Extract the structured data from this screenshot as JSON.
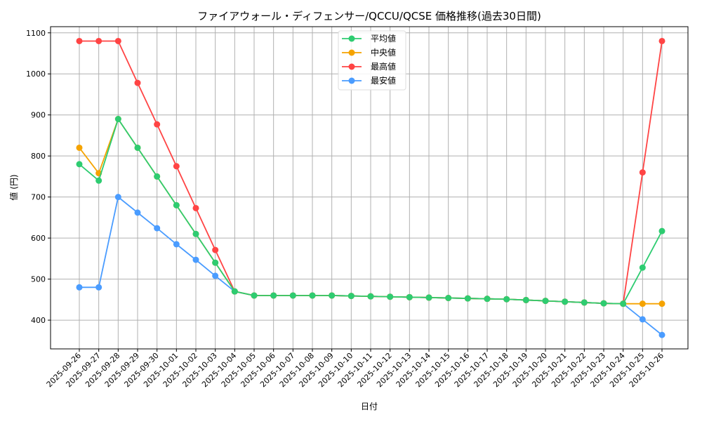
{
  "chart_data": {
    "type": "line",
    "title": "ファイアウォール・ディフェンサー/QCCU/QCSE 価格推移(過去30日間)",
    "xlabel": "日付",
    "ylabel": "値 (円)",
    "ylim": [
      330,
      1115
    ],
    "yticks": [
      400,
      500,
      600,
      700,
      800,
      900,
      1000,
      1100
    ],
    "grid": true,
    "legend_position": "top-center",
    "x": [
      "2025-09-26",
      "2025-09-27",
      "2025-09-28",
      "2025-09-29",
      "2025-09-30",
      "2025-10-01",
      "2025-10-02",
      "2025-10-03",
      "2025-10-04",
      "2025-10-05",
      "2025-10-06",
      "2025-10-07",
      "2025-10-08",
      "2025-10-09",
      "2025-10-10",
      "2025-10-11",
      "2025-10-12",
      "2025-10-13",
      "2025-10-14",
      "2025-10-15",
      "2025-10-16",
      "2025-10-17",
      "2025-10-18",
      "2025-10-19",
      "2025-10-20",
      "2025-10-21",
      "2025-10-22",
      "2025-10-23",
      "2025-10-24",
      "2025-10-25",
      "2025-10-26"
    ],
    "series": [
      {
        "name": "平均値",
        "color": "#2ecc71",
        "values": [
          780,
          740,
          890,
          820,
          750,
          680,
          610,
          540,
          470,
          460,
          460,
          460,
          460,
          460,
          459,
          458,
          457,
          456,
          455,
          454,
          453,
          452,
          451,
          449,
          447,
          445,
          443,
          441,
          440,
          528,
          617
        ]
      },
      {
        "name": "中央値",
        "color": "#f5a300",
        "values": [
          820,
          758,
          890,
          820,
          750,
          680,
          610,
          540,
          470,
          460,
          460,
          460,
          460,
          460,
          459,
          458,
          457,
          456,
          455,
          454,
          453,
          452,
          451,
          449,
          447,
          445,
          443,
          441,
          440,
          440,
          440
        ]
      },
      {
        "name": "最高値",
        "color": "#ff4444",
        "values": [
          1080,
          1080,
          1080,
          978,
          877,
          775,
          673,
          571,
          470,
          460,
          460,
          460,
          460,
          460,
          459,
          458,
          457,
          456,
          455,
          454,
          453,
          452,
          451,
          449,
          447,
          445,
          443,
          441,
          440,
          760,
          1080
        ]
      },
      {
        "name": "最安値",
        "color": "#4a9cff",
        "values": [
          480,
          480,
          700,
          662,
          624,
          585,
          547,
          508,
          470,
          460,
          460,
          460,
          460,
          460,
          459,
          458,
          457,
          456,
          455,
          454,
          453,
          452,
          451,
          449,
          447,
          445,
          443,
          441,
          440,
          402,
          364
        ]
      }
    ]
  }
}
